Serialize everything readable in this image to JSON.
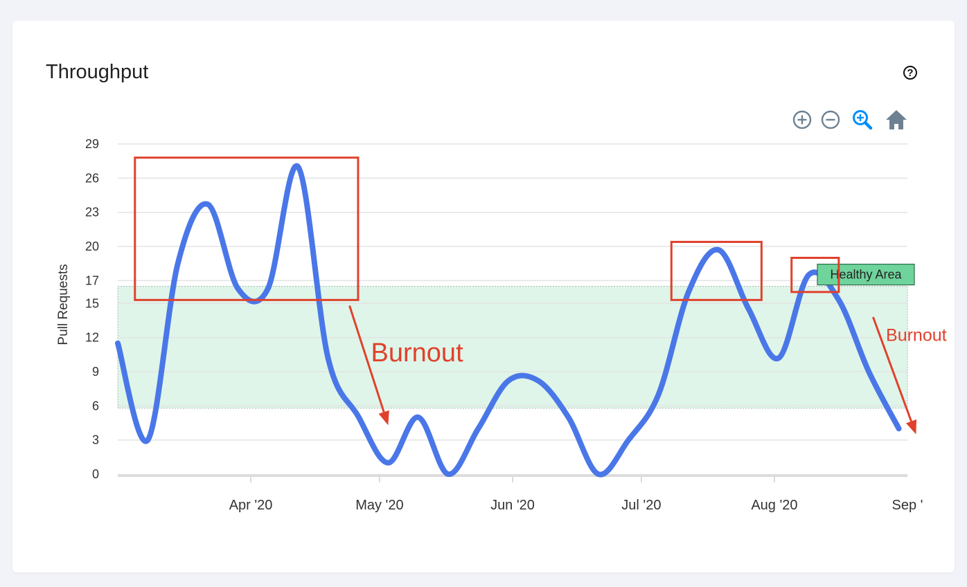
{
  "card": {
    "title": "Throughput",
    "help_icon": "question-circle-icon"
  },
  "toolbar": {
    "zoom_in_icon": "zoom-in-circle-icon",
    "zoom_out_icon": "zoom-out-circle-icon",
    "selection_zoom_icon": "magnifier-zoom-icon",
    "reset_icon": "home-icon",
    "accent_color": "#008ffb",
    "icon_color": "#6e8192"
  },
  "chart_data": {
    "type": "line",
    "ylabel": "Pull Requests",
    "ylim": [
      0,
      29
    ],
    "yticks": [
      0,
      3,
      6,
      9,
      12,
      15,
      17,
      20,
      23,
      26,
      29
    ],
    "xlim": [
      "2020-03-01",
      "2020-09-01"
    ],
    "xticks": [
      {
        "date": "2020-04-01",
        "label": "Apr '20"
      },
      {
        "date": "2020-05-01",
        "label": "May '20"
      },
      {
        "date": "2020-06-01",
        "label": "Jun '20"
      },
      {
        "date": "2020-07-01",
        "label": "Jul '20"
      },
      {
        "date": "2020-08-01",
        "label": "Aug '20"
      },
      {
        "date": "2020-09-01",
        "label": "Sep '"
      }
    ],
    "grid": true,
    "line_color": "#4a77e8",
    "series": [
      {
        "points": [
          {
            "date": "2020-03-01",
            "value": 11.5
          },
          {
            "date": "2020-03-08",
            "value": 3
          },
          {
            "date": "2020-03-15",
            "value": 18.5
          },
          {
            "date": "2020-03-22",
            "value": 23.7
          },
          {
            "date": "2020-03-29",
            "value": 16.3
          },
          {
            "date": "2020-04-05",
            "value": 16.3
          },
          {
            "date": "2020-04-12",
            "value": 27
          },
          {
            "date": "2020-04-19",
            "value": 10.2
          },
          {
            "date": "2020-04-26",
            "value": 5.1
          },
          {
            "date": "2020-05-03",
            "value": 1
          },
          {
            "date": "2020-05-10",
            "value": 5
          },
          {
            "date": "2020-05-17",
            "value": 0
          },
          {
            "date": "2020-05-24",
            "value": 4
          },
          {
            "date": "2020-05-31",
            "value": 8.2
          },
          {
            "date": "2020-06-07",
            "value": 8.2
          },
          {
            "date": "2020-06-14",
            "value": 5
          },
          {
            "date": "2020-06-21",
            "value": 0
          },
          {
            "date": "2020-06-28",
            "value": 3
          },
          {
            "date": "2020-07-05",
            "value": 7
          },
          {
            "date": "2020-07-12",
            "value": 16
          },
          {
            "date": "2020-07-19",
            "value": 19.7
          },
          {
            "date": "2020-07-26",
            "value": 14.5
          },
          {
            "date": "2020-08-02",
            "value": 10.2
          },
          {
            "date": "2020-08-09",
            "value": 17.5
          },
          {
            "date": "2020-08-16",
            "value": 15.3
          },
          {
            "date": "2020-08-23",
            "value": 9
          },
          {
            "date": "2020-08-30",
            "value": 4
          }
        ]
      }
    ],
    "healthy_band": {
      "y_min": 5.8,
      "y_max": 16.5,
      "label": "Healthy Area",
      "color": "#c9eedb",
      "label_color": "#6fd39c"
    },
    "annotations": {
      "box_color": "#e0412c",
      "boxes": [
        {
          "x0": "2020-03-05",
          "x1": "2020-04-26",
          "y0": 15.3,
          "y1": 27.8
        },
        {
          "x0": "2020-07-08",
          "x1": "2020-07-29",
          "y0": 15.3,
          "y1": 20.4
        },
        {
          "x0": "2020-08-05",
          "x1": "2020-08-16",
          "y0": 16.0,
          "y1": 19.0
        }
      ],
      "arrows": [
        {
          "from_date": "2020-04-24",
          "from_value": 14.8,
          "to_date": "2020-05-03",
          "to_value": 4.3
        },
        {
          "from_date": "2020-08-24",
          "from_value": 13.8,
          "to_date": "2020-09-03",
          "to_value": 3.5
        }
      ],
      "labels": [
        {
          "text": "Burnout",
          "date": "2020-04-29",
          "value": 9.9,
          "size": "large"
        },
        {
          "text": "Burnout",
          "date": "2020-08-27",
          "value": 11.7,
          "size": "small"
        }
      ]
    }
  }
}
